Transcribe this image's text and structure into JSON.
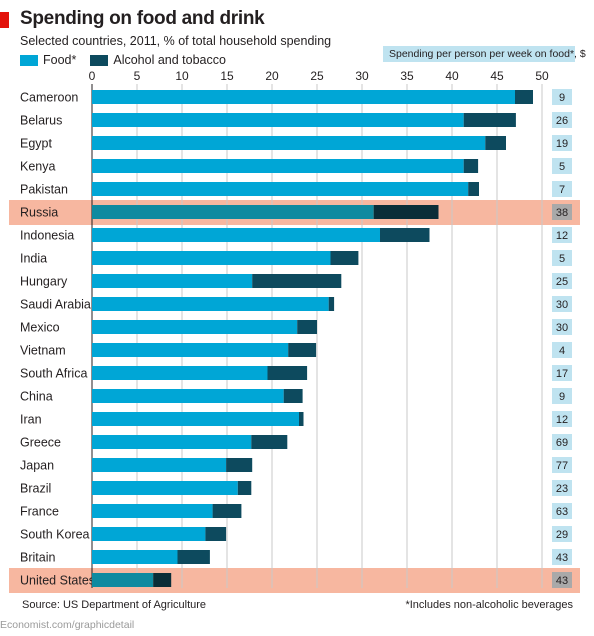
{
  "header": {
    "title": "Spending on food and drink",
    "subtitle": "Selected countries, 2011, % of total household spending"
  },
  "legend": {
    "food_label": "Food*",
    "alcohol_label": "Alcohol and tobacco"
  },
  "side_column": {
    "heading": "Spending per person per week on food*, $"
  },
  "footer": {
    "source": "Source: US Department of Agriculture",
    "footnote": "*Includes non-alcoholic beverages",
    "credit": "Economist.com/graphicdetail"
  },
  "colors": {
    "food": "#00a6d6",
    "alcohol": "#0d4a5e",
    "food_highlighted": "#0f8aa0",
    "alcohol_highlighted": "#0a2d38",
    "highlight_band": "#f7b7a0",
    "grid": "#c9c9c9",
    "side_box": "#bfe3f0",
    "side_box_highlighted": "#a9a9a9",
    "title_tag": "#e3120b"
  },
  "chart_data": {
    "type": "bar",
    "orientation": "horizontal",
    "stacked": true,
    "title": "Spending on food and drink",
    "subtitle": "Selected countries, 2011, % of total household spending",
    "xlim": [
      0,
      50
    ],
    "xticks": [
      0,
      5,
      10,
      15,
      20,
      25,
      30,
      35,
      40,
      45,
      50
    ],
    "grid": true,
    "legend_position": "top-left",
    "categories": [
      "Cameroon",
      "Belarus",
      "Egypt",
      "Kenya",
      "Pakistan",
      "Russia",
      "Indonesia",
      "India",
      "Hungary",
      "Saudi Arabia",
      "Mexico",
      "Vietnam",
      "South Africa",
      "China",
      "Iran",
      "Greece",
      "Japan",
      "Brazil",
      "France",
      "South Korea",
      "Britain",
      "United States"
    ],
    "series": [
      {
        "name": "Food*",
        "values": [
          47.0,
          41.3,
          43.7,
          41.3,
          41.8,
          31.3,
          32.0,
          26.5,
          17.8,
          26.3,
          22.8,
          21.8,
          19.5,
          21.3,
          23.0,
          17.7,
          14.9,
          16.2,
          13.4,
          12.6,
          9.5,
          6.8
        ]
      },
      {
        "name": "Alcohol and tobacco",
        "values": [
          2.0,
          5.8,
          2.3,
          1.6,
          1.2,
          7.2,
          5.5,
          3.1,
          9.9,
          0.6,
          2.2,
          3.1,
          4.4,
          2.1,
          0.5,
          4.0,
          2.9,
          1.5,
          3.2,
          2.3,
          3.6,
          2.0
        ]
      }
    ],
    "side_values": [
      9,
      26,
      19,
      5,
      7,
      38,
      12,
      5,
      25,
      30,
      30,
      4,
      17,
      9,
      12,
      69,
      77,
      23,
      63,
      29,
      43,
      43
    ],
    "highlighted": [
      "Russia",
      "United States"
    ]
  }
}
